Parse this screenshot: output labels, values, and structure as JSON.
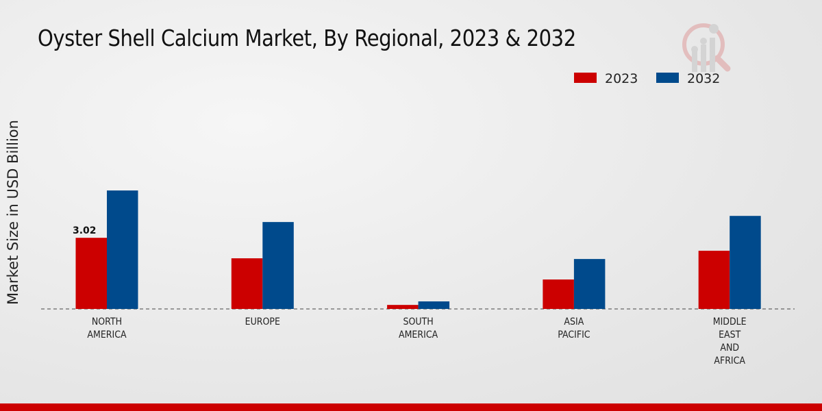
{
  "chart_data": {
    "type": "bar",
    "title": "Oyster Shell Calcium Market, By Regional, 2023 & 2032",
    "xlabel": "",
    "ylabel": "Market Size in USD Billion",
    "categories": [
      [
        "NORTH",
        "AMERICA"
      ],
      [
        "EUROPE"
      ],
      [
        "SOUTH",
        "AMERICA"
      ],
      [
        "ASIA",
        "PACIFIC"
      ],
      [
        "MIDDLE",
        "EAST",
        "AND",
        "AFRICA"
      ]
    ],
    "series": [
      {
        "name": "2023",
        "color": "#cc0000",
        "values": [
          3.02,
          2.15,
          0.17,
          1.25,
          2.47
        ]
      },
      {
        "name": "2032",
        "color": "#004a8c",
        "values": [
          5.03,
          3.69,
          0.32,
          2.12,
          3.95
        ]
      }
    ],
    "data_labels": [
      {
        "series": "2023",
        "category_index": 0,
        "text": "3.02"
      }
    ],
    "ylim": [
      0,
      10.5
    ],
    "grid": false,
    "legend_position": "top-right"
  }
}
